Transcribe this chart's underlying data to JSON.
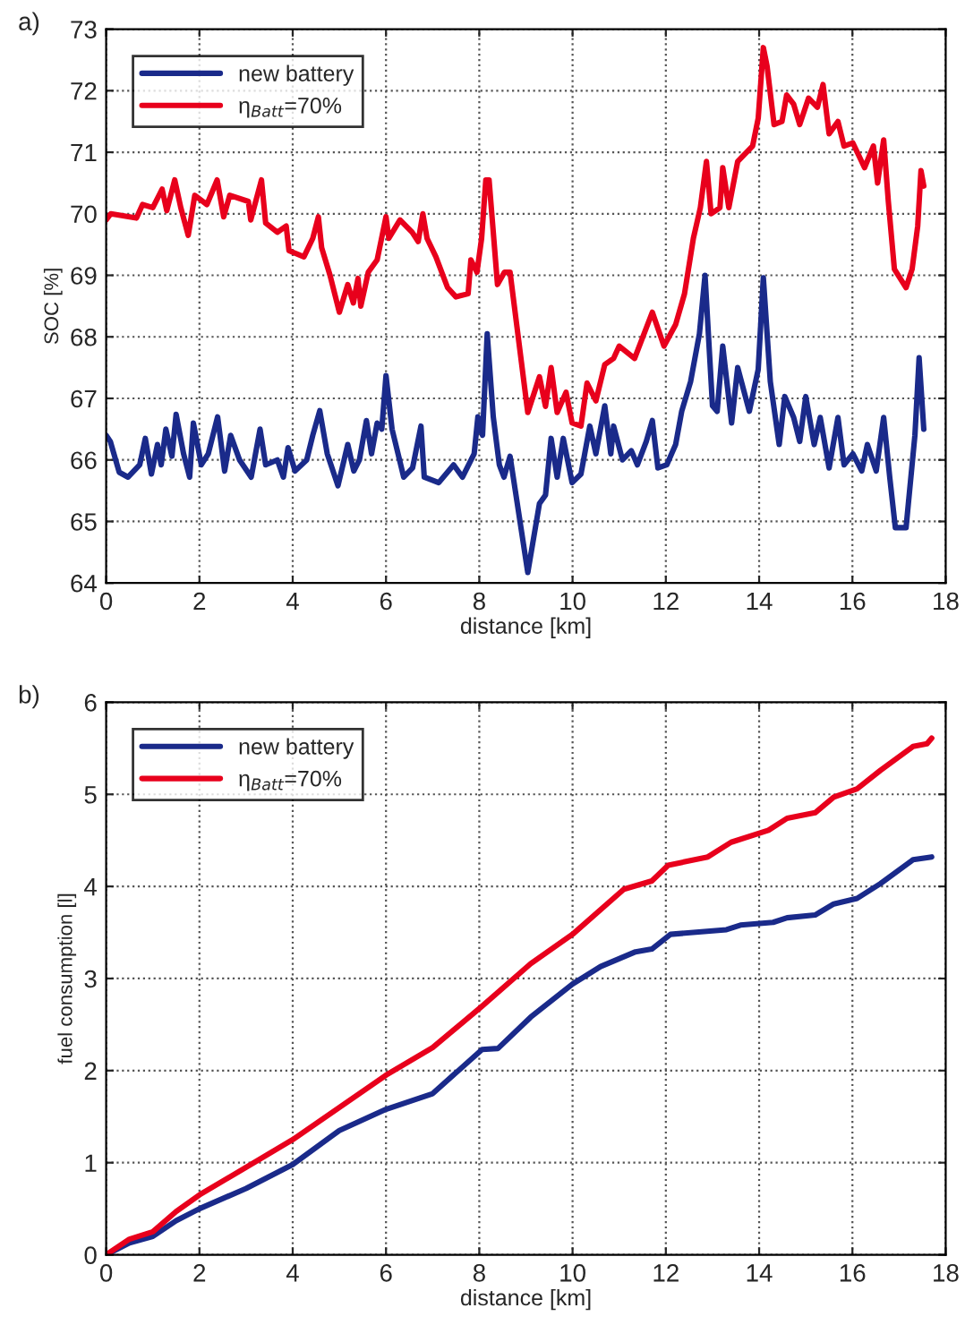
{
  "chart_data": [
    {
      "type": "line",
      "title": "a)",
      "xlabel": "distance [km]",
      "ylabel": "SOC [%]",
      "xlim": [
        0,
        18
      ],
      "xticks": [
        0,
        2,
        4,
        6,
        8,
        10,
        12,
        14,
        16,
        18
      ],
      "ylim": [
        64,
        73
      ],
      "yticks": [
        64,
        65,
        66,
        67,
        68,
        69,
        70,
        71,
        72,
        73
      ],
      "grid": true,
      "legend": "top left",
      "line_style": "solid",
      "marker": "none",
      "series": [
        {
          "name": "new battery",
          "color": "#1a2a8a",
          "x": [
            0,
            0.09,
            0.28,
            0.47,
            0.72,
            0.84,
            0.97,
            1.1,
            1.18,
            1.28,
            1.41,
            1.5,
            1.66,
            1.79,
            1.87,
            2.04,
            2.19,
            2.39,
            2.54,
            2.67,
            2.86,
            3.11,
            3.3,
            3.42,
            3.67,
            3.8,
            3.9,
            4.05,
            4.3,
            4.43,
            4.58,
            4.74,
            4.97,
            5.18,
            5.31,
            5.43,
            5.58,
            5.69,
            5.81,
            5.91,
            6.0,
            6.13,
            6.38,
            6.57,
            6.75,
            6.82,
            7.13,
            7.45,
            7.64,
            7.89,
            7.97,
            8.07,
            8.17,
            8.3,
            8.43,
            8.53,
            8.66,
            9.04,
            9.29,
            9.42,
            9.54,
            9.67,
            9.8,
            9.99,
            10.18,
            10.37,
            10.5,
            10.69,
            10.82,
            10.88,
            11.07,
            11.26,
            11.39,
            11.58,
            11.71,
            11.83,
            12.02,
            12.21,
            12.34,
            12.53,
            12.72,
            12.84,
            13.0,
            13.1,
            13.22,
            13.41,
            13.54,
            13.79,
            13.98,
            14.09,
            14.24,
            14.43,
            14.55,
            14.74,
            14.87,
            15.0,
            15.18,
            15.31,
            15.5,
            15.69,
            15.82,
            16.01,
            16.2,
            16.32,
            16.51,
            16.67,
            16.8,
            16.92,
            17.15,
            17.34,
            17.43,
            17.53
          ],
          "values": [
            66.4,
            66.3,
            65.8,
            65.72,
            65.92,
            66.35,
            65.77,
            66.25,
            65.92,
            66.5,
            66.06,
            66.74,
            66.1,
            65.72,
            66.6,
            65.92,
            66.1,
            66.7,
            65.82,
            66.4,
            66.0,
            65.72,
            66.5,
            65.92,
            66.0,
            65.72,
            66.2,
            65.82,
            66.0,
            66.4,
            66.8,
            66.1,
            65.58,
            66.25,
            65.82,
            66.0,
            66.64,
            66.1,
            66.6,
            66.5,
            67.37,
            66.5,
            65.72,
            65.87,
            66.55,
            65.72,
            65.63,
            65.92,
            65.72,
            66.1,
            66.7,
            66.4,
            68.05,
            66.7,
            65.92,
            65.72,
            66.06,
            64.17,
            65.29,
            65.43,
            66.35,
            65.72,
            66.35,
            65.63,
            65.77,
            66.55,
            66.1,
            66.88,
            66.1,
            66.55,
            66.0,
            66.15,
            65.92,
            66.3,
            66.64,
            65.87,
            65.92,
            66.25,
            66.79,
            67.27,
            68.05,
            69.0,
            66.88,
            66.79,
            67.85,
            66.6,
            67.5,
            66.79,
            67.47,
            68.96,
            67.27,
            66.25,
            67.03,
            66.69,
            66.3,
            67.03,
            66.25,
            66.69,
            65.87,
            66.69,
            65.92,
            66.1,
            65.82,
            66.25,
            65.82,
            66.69,
            65.72,
            64.9,
            64.9,
            66.4,
            67.66,
            66.5
          ]
        },
        {
          "name": "η$_{Batt}$=70%",
          "color": "#e8001c",
          "x": [
            0,
            0.1,
            0.65,
            0.78,
            1.0,
            1.2,
            1.3,
            1.47,
            1.6,
            1.76,
            1.9,
            2.16,
            2.38,
            2.52,
            2.65,
            3.05,
            3.1,
            3.33,
            3.42,
            3.67,
            3.86,
            3.92,
            4.24,
            4.43,
            4.55,
            4.62,
            4.8,
            5.0,
            5.18,
            5.3,
            5.4,
            5.46,
            5.62,
            5.81,
            6.0,
            6.06,
            6.3,
            6.56,
            6.69,
            6.79,
            6.88,
            7.07,
            7.32,
            7.5,
            7.76,
            7.82,
            7.95,
            8.05,
            8.14,
            8.21,
            8.39,
            8.54,
            8.66,
            9.04,
            9.29,
            9.42,
            9.54,
            9.67,
            9.86,
            9.99,
            10.18,
            10.31,
            10.5,
            10.69,
            10.88,
            11.0,
            11.33,
            11.71,
            11.96,
            12.21,
            12.4,
            12.59,
            12.74,
            12.87,
            12.97,
            13.16,
            13.22,
            13.35,
            13.54,
            13.86,
            13.98,
            14.09,
            14.17,
            14.32,
            14.49,
            14.59,
            14.74,
            14.87,
            15.06,
            15.25,
            15.37,
            15.5,
            15.69,
            15.82,
            16.01,
            16.26,
            16.45,
            16.54,
            16.67,
            16.77,
            16.9,
            17.15,
            17.28,
            17.4,
            17.47,
            17.53
          ],
          "values": [
            69.9,
            70.0,
            69.93,
            70.15,
            70.1,
            70.4,
            70.05,
            70.55,
            70.1,
            69.65,
            70.3,
            70.15,
            70.55,
            69.95,
            70.3,
            70.2,
            69.9,
            70.55,
            69.85,
            69.7,
            69.8,
            69.4,
            69.3,
            69.6,
            69.95,
            69.45,
            69.0,
            68.4,
            68.85,
            68.55,
            68.95,
            68.5,
            69.05,
            69.25,
            69.95,
            69.6,
            69.9,
            69.7,
            69.55,
            70.0,
            69.6,
            69.3,
            68.8,
            68.65,
            68.7,
            69.25,
            69.05,
            69.6,
            70.55,
            70.55,
            68.85,
            69.05,
            69.05,
            66.77,
            67.35,
            66.87,
            67.5,
            66.77,
            67.1,
            66.6,
            66.55,
            67.25,
            66.96,
            67.55,
            67.65,
            67.85,
            67.65,
            68.4,
            67.85,
            68.2,
            68.7,
            69.6,
            70.1,
            70.85,
            70.0,
            70.1,
            70.75,
            70.1,
            70.85,
            71.1,
            71.55,
            72.7,
            72.4,
            71.45,
            71.5,
            71.93,
            71.78,
            71.45,
            71.88,
            71.73,
            72.1,
            71.3,
            71.5,
            71.1,
            71.15,
            70.75,
            71.1,
            70.5,
            71.2,
            70.2,
            69.1,
            68.8,
            69.1,
            69.8,
            70.7,
            70.45
          ]
        }
      ]
    },
    {
      "type": "line",
      "title": "b)",
      "xlabel": "distance [km]",
      "ylabel": "fuel consumption [l]",
      "xlim": [
        0,
        18
      ],
      "xticks": [
        0,
        2,
        4,
        6,
        8,
        10,
        12,
        14,
        16,
        18
      ],
      "ylim": [
        0,
        6
      ],
      "yticks": [
        0,
        1,
        2,
        3,
        4,
        5,
        6
      ],
      "grid": true,
      "legend": "top left",
      "line_style": "solid",
      "marker": "none",
      "series": [
        {
          "name": "new battery",
          "color": "#1a2a8a",
          "x": [
            0,
            0.5,
            1,
            1.5,
            2,
            3,
            4,
            5,
            6,
            7,
            8.06,
            8.4,
            9.1,
            10,
            10.6,
            11.35,
            11.7,
            12.1,
            13.3,
            13.6,
            14.3,
            14.6,
            15.2,
            15.6,
            16.1,
            16.6,
            17.3,
            17.7
          ],
          "values": [
            0,
            0.13,
            0.2,
            0.37,
            0.5,
            0.72,
            0.98,
            1.35,
            1.58,
            1.75,
            2.23,
            2.24,
            2.58,
            2.94,
            3.13,
            3.29,
            3.32,
            3.48,
            3.53,
            3.58,
            3.61,
            3.66,
            3.69,
            3.81,
            3.87,
            4.03,
            4.29,
            4.32
          ]
        },
        {
          "name": "η$_{Batt}$=70%",
          "color": "#e8001c",
          "x": [
            0,
            0.5,
            1,
            1.5,
            2,
            3,
            4,
            5,
            6,
            7,
            8.06,
            9.1,
            10,
            11.1,
            11.7,
            12.05,
            12.9,
            13.4,
            14.2,
            14.6,
            15.2,
            15.6,
            16.1,
            16.6,
            17.3,
            17.6,
            17.7
          ],
          "values": [
            0,
            0.17,
            0.25,
            0.47,
            0.65,
            0.95,
            1.25,
            1.6,
            1.95,
            2.25,
            2.7,
            3.16,
            3.48,
            3.97,
            4.06,
            4.23,
            4.32,
            4.48,
            4.61,
            4.74,
            4.8,
            4.97,
            5.06,
            5.26,
            5.52,
            5.55,
            5.61
          ]
        }
      ]
    }
  ]
}
